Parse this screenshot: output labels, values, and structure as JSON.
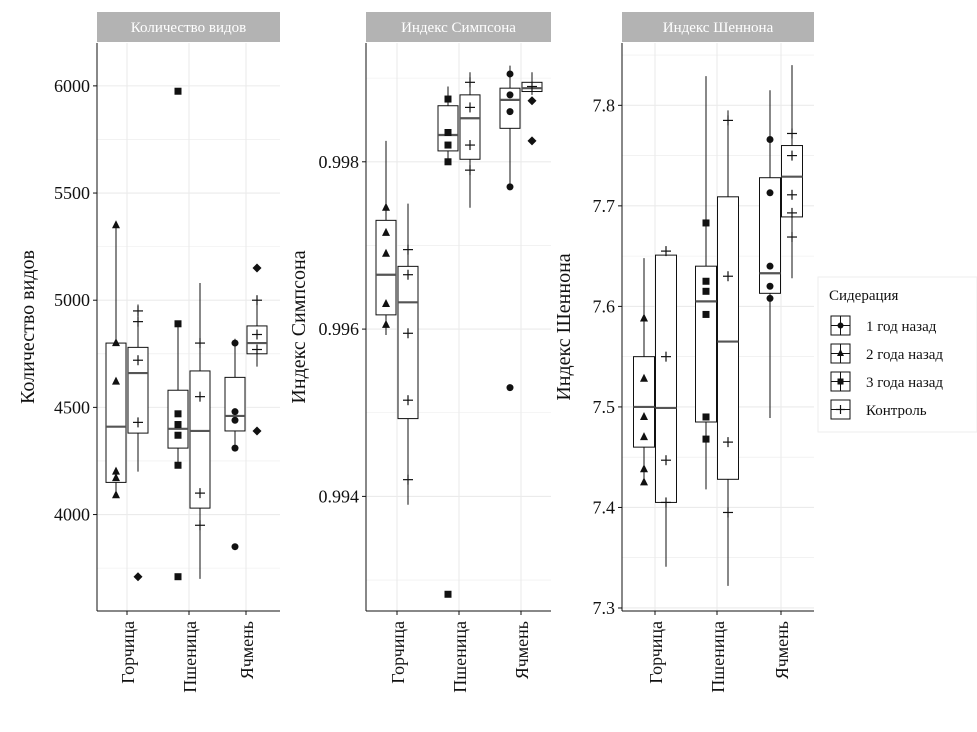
{
  "legend": {
    "title": "Сидерация",
    "items": [
      {
        "label": "1 год назад",
        "marker": "circle"
      },
      {
        "label": "2 года назад",
        "marker": "triangle"
      },
      {
        "label": "3 года назад",
        "marker": "square"
      },
      {
        "label": "Контроль",
        "marker": "plus"
      }
    ]
  },
  "colors": {
    "strip": "#b3b3b3",
    "grid": "#ebebeb",
    "ink": "#111111",
    "median": "#555555"
  },
  "chart_data": [
    {
      "type": "box",
      "strip_title": "Количество видов",
      "ylabel": "Количество видов",
      "categories": [
        "Горчица",
        "Пшеница",
        "Ячмень"
      ],
      "ylim": [
        3550,
        6200
      ],
      "yticks": [
        4000,
        4500,
        5000,
        5500,
        6000
      ],
      "ytick_labels": [
        "4000",
        "4500",
        "5000",
        "5500",
        "6000"
      ],
      "boxes": [
        {
          "cat": 0,
          "group": "siderate",
          "q1": 4150,
          "median": 4410,
          "q3": 4800,
          "lo": 4080,
          "hi": 5350,
          "outliers": [],
          "points": [
            {
              "y": 4800,
              "m": "triangle"
            },
            {
              "y": 4620,
              "m": "triangle"
            },
            {
              "y": 4200,
              "m": "triangle"
            },
            {
              "y": 4170,
              "m": "triangle"
            },
            {
              "y": 4090,
              "m": "triangle"
            },
            {
              "y": 5350,
              "m": "triangle"
            }
          ]
        },
        {
          "cat": 0,
          "group": "control",
          "q1": 4380,
          "median": 4660,
          "q3": 4780,
          "lo": 4200,
          "hi": 4980,
          "outliers": [
            3710
          ],
          "points": [
            {
              "y": 4720,
              "m": "plus"
            },
            {
              "y": 4430,
              "m": "plus"
            },
            {
              "y": 4950,
              "m": "plus"
            },
            {
              "y": 4900,
              "m": "plus"
            }
          ]
        },
        {
          "cat": 1,
          "group": "siderate",
          "q1": 4310,
          "median": 4400,
          "q3": 4580,
          "lo": 4220,
          "hi": 4890,
          "outliers": [
            3710,
            5975
          ],
          "points": [
            {
              "y": 4470,
              "m": "square"
            },
            {
              "y": 4420,
              "m": "square"
            },
            {
              "y": 4370,
              "m": "square"
            },
            {
              "y": 4230,
              "m": "square"
            },
            {
              "y": 4890,
              "m": "square"
            }
          ]
        },
        {
          "cat": 1,
          "group": "control",
          "q1": 4030,
          "median": 4390,
          "q3": 4670,
          "lo": 3700,
          "hi": 5080,
          "outliers": [],
          "points": [
            {
              "y": 4550,
              "m": "plus"
            },
            {
              "y": 4100,
              "m": "plus"
            },
            {
              "y": 3950,
              "m": "plus"
            },
            {
              "y": 4800,
              "m": "plus"
            }
          ]
        },
        {
          "cat": 2,
          "group": "siderate",
          "q1": 4390,
          "median": 4460,
          "q3": 4640,
          "lo": 4300,
          "hi": 4820,
          "outliers": [
            3850
          ],
          "points": [
            {
              "y": 4480,
              "m": "circle"
            },
            {
              "y": 4440,
              "m": "circle"
            },
            {
              "y": 4310,
              "m": "circle"
            },
            {
              "y": 4800,
              "m": "circle"
            }
          ]
        },
        {
          "cat": 2,
          "group": "control",
          "q1": 4750,
          "median": 4800,
          "q3": 4880,
          "lo": 4690,
          "hi": 5020,
          "outliers": [
            4390,
            5150
          ],
          "points": [
            {
              "y": 4840,
              "m": "plus"
            },
            {
              "y": 4770,
              "m": "plus"
            },
            {
              "y": 5000,
              "m": "plus"
            }
          ]
        }
      ]
    },
    {
      "type": "box",
      "strip_title": "Индекс Симпсона",
      "ylabel": "Индекс Симпсона",
      "categories": [
        "Горчица",
        "Пшеница",
        "Ячмень"
      ],
      "ylim": [
        0.99263,
        0.99942
      ],
      "yticks": [
        0.994,
        0.996,
        0.998
      ],
      "ytick_labels": [
        "0.994",
        "0.996",
        "0.998"
      ],
      "boxes": [
        {
          "cat": 0,
          "group": "siderate",
          "q1": 0.99617,
          "median": 0.99665,
          "q3": 0.9973,
          "lo": 0.99593,
          "hi": 0.99825,
          "outliers": [],
          "points": [
            {
              "y": 0.99745,
              "m": "triangle"
            },
            {
              "y": 0.99715,
              "m": "triangle"
            },
            {
              "y": 0.9969,
              "m": "triangle"
            },
            {
              "y": 0.9963,
              "m": "triangle"
            },
            {
              "y": 0.99605,
              "m": "triangle"
            }
          ]
        },
        {
          "cat": 0,
          "group": "control",
          "q1": 0.99493,
          "median": 0.99632,
          "q3": 0.99675,
          "lo": 0.9939,
          "hi": 0.9975,
          "outliers": [],
          "points": [
            {
              "y": 0.99665,
              "m": "plus"
            },
            {
              "y": 0.99595,
              "m": "plus"
            },
            {
              "y": 0.99515,
              "m": "plus"
            },
            {
              "y": 0.9942,
              "m": "plus"
            },
            {
              "y": 0.99695,
              "m": "plus"
            }
          ]
        },
        {
          "cat": 1,
          "group": "siderate",
          "q1": 0.99813,
          "median": 0.99832,
          "q3": 0.99867,
          "lo": 0.998,
          "hi": 0.9989,
          "outliers": [
            0.99283
          ],
          "points": [
            {
              "y": 0.99875,
              "m": "square"
            },
            {
              "y": 0.99835,
              "m": "square"
            },
            {
              "y": 0.9982,
              "m": "square"
            },
            {
              "y": 0.998,
              "m": "square"
            }
          ]
        },
        {
          "cat": 1,
          "group": "control",
          "q1": 0.99803,
          "median": 0.99852,
          "q3": 0.9988,
          "lo": 0.99745,
          "hi": 0.99907,
          "outliers": [],
          "points": [
            {
              "y": 0.99865,
              "m": "plus"
            },
            {
              "y": 0.9982,
              "m": "plus"
            },
            {
              "y": 0.9979,
              "m": "plus"
            },
            {
              "y": 0.99895,
              "m": "plus"
            }
          ]
        },
        {
          "cat": 2,
          "group": "siderate",
          "q1": 0.9984,
          "median": 0.99874,
          "q3": 0.99888,
          "lo": 0.9977,
          "hi": 0.99915,
          "outliers": [
            0.9953
          ],
          "points": [
            {
              "y": 0.99905,
              "m": "circle"
            },
            {
              "y": 0.9988,
              "m": "circle"
            },
            {
              "y": 0.9986,
              "m": "circle"
            },
            {
              "y": 0.9977,
              "m": "circle"
            }
          ]
        },
        {
          "cat": 2,
          "group": "control",
          "q1": 0.99884,
          "median": 0.99888,
          "q3": 0.99895,
          "lo": 0.9988,
          "hi": 0.99907,
          "outliers": [
            0.99873,
            0.99825
          ],
          "points": [
            {
              "y": 0.9989,
              "m": "plus"
            }
          ]
        }
      ]
    },
    {
      "type": "box",
      "strip_title": "Индекс Шеннона",
      "ylabel": "Индекс Шеннона",
      "categories": [
        "Горчица",
        "Пшеница",
        "Ячмень"
      ],
      "ylim": [
        7.297,
        7.862
      ],
      "yticks": [
        7.3,
        7.4,
        7.5,
        7.6,
        7.7,
        7.8
      ],
      "ytick_labels": [
        "7.3",
        "7.4",
        "7.5",
        "7.6",
        "7.7",
        "7.8"
      ],
      "boxes": [
        {
          "cat": 0,
          "group": "siderate",
          "q1": 7.46,
          "median": 7.5,
          "q3": 7.55,
          "lo": 7.423,
          "hi": 7.648,
          "outliers": [],
          "points": [
            {
              "y": 7.588,
              "m": "triangle"
            },
            {
              "y": 7.528,
              "m": "triangle"
            },
            {
              "y": 7.49,
              "m": "triangle"
            },
            {
              "y": 7.47,
              "m": "triangle"
            },
            {
              "y": 7.438,
              "m": "triangle"
            },
            {
              "y": 7.425,
              "m": "triangle"
            }
          ]
        },
        {
          "cat": 0,
          "group": "control",
          "q1": 7.405,
          "median": 7.499,
          "q3": 7.651,
          "lo": 7.341,
          "hi": 7.659,
          "outliers": [],
          "points": [
            {
              "y": 7.55,
              "m": "plus"
            },
            {
              "y": 7.447,
              "m": "plus"
            },
            {
              "y": 7.405,
              "m": "plus"
            },
            {
              "y": 7.655,
              "m": "plus"
            }
          ]
        },
        {
          "cat": 1,
          "group": "siderate",
          "q1": 7.485,
          "median": 7.605,
          "q3": 7.64,
          "lo": 7.418,
          "hi": 7.829,
          "outliers": [],
          "points": [
            {
              "y": 7.683,
              "m": "square"
            },
            {
              "y": 7.625,
              "m": "square"
            },
            {
              "y": 7.615,
              "m": "square"
            },
            {
              "y": 7.592,
              "m": "square"
            },
            {
              "y": 7.49,
              "m": "square"
            },
            {
              "y": 7.468,
              "m": "square"
            }
          ]
        },
        {
          "cat": 1,
          "group": "control",
          "q1": 7.428,
          "median": 7.565,
          "q3": 7.709,
          "lo": 7.322,
          "hi": 7.795,
          "outliers": [],
          "points": [
            {
              "y": 7.63,
              "m": "plus"
            },
            {
              "y": 7.465,
              "m": "plus"
            },
            {
              "y": 7.395,
              "m": "plus"
            },
            {
              "y": 7.785,
              "m": "plus"
            }
          ]
        },
        {
          "cat": 2,
          "group": "siderate",
          "q1": 7.613,
          "median": 7.633,
          "q3": 7.728,
          "lo": 7.489,
          "hi": 7.815,
          "outliers": [],
          "points": [
            {
              "y": 7.766,
              "m": "circle"
            },
            {
              "y": 7.713,
              "m": "circle"
            },
            {
              "y": 7.64,
              "m": "circle"
            },
            {
              "y": 7.62,
              "m": "circle"
            },
            {
              "y": 7.608,
              "m": "circle"
            }
          ]
        },
        {
          "cat": 2,
          "group": "control",
          "q1": 7.689,
          "median": 7.729,
          "q3": 7.76,
          "lo": 7.628,
          "hi": 7.84,
          "outliers": [],
          "points": [
            {
              "y": 7.772,
              "m": "plus"
            },
            {
              "y": 7.75,
              "m": "plus"
            },
            {
              "y": 7.711,
              "m": "plus"
            },
            {
              "y": 7.693,
              "m": "plus"
            },
            {
              "y": 7.669,
              "m": "plus"
            }
          ]
        }
      ]
    }
  ]
}
